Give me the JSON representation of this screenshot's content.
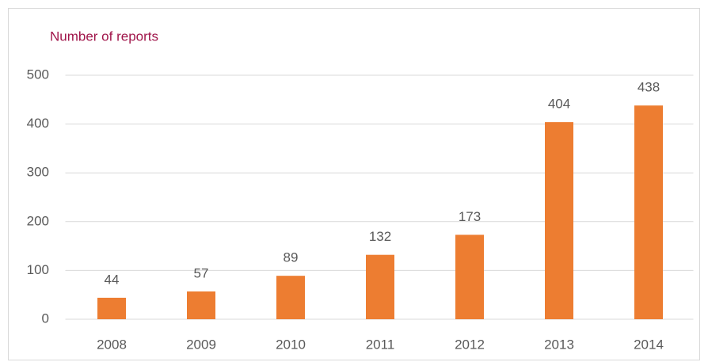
{
  "chart_data": {
    "type": "bar",
    "title": "Number of reports",
    "categories": [
      "2008",
      "2009",
      "2010",
      "2011",
      "2012",
      "2013",
      "2014"
    ],
    "values": [
      44,
      57,
      89,
      132,
      173,
      404,
      438
    ],
    "color": "#ed7d31",
    "ylim": [
      0,
      500
    ],
    "yticks": [
      0,
      100,
      200,
      300,
      400,
      500
    ],
    "grid": true
  }
}
